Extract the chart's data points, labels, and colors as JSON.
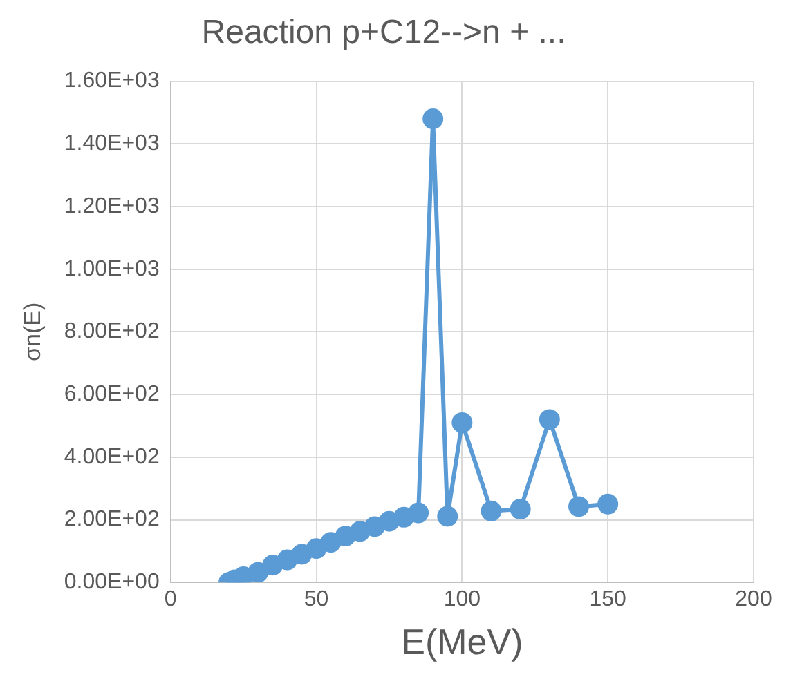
{
  "chart_data": {
    "type": "line",
    "title": "Reaction p+C12-->n + ...",
    "xlabel": "E(MeV)",
    "ylabel": "σn(E)",
    "series": [
      {
        "color": "#5b9bd5",
        "x": [
          20,
          22,
          25,
          30,
          35,
          40,
          45,
          50,
          55,
          60,
          65,
          70,
          75,
          80,
          85,
          90,
          95,
          100,
          110,
          120,
          130,
          140,
          150
        ],
        "values": [
          0,
          8,
          18,
          32,
          55,
          72,
          90,
          108,
          128,
          148,
          163,
          178,
          195,
          208,
          222,
          1480,
          211,
          510,
          228,
          234,
          520,
          242,
          250
        ]
      }
    ],
    "xlim": [
      0,
      200
    ],
    "xticks": [
      0,
      50,
      100,
      150,
      200
    ],
    "ylim": [
      0,
      1600
    ],
    "yticks": [
      {
        "value": 0,
        "label": "0.00E+00"
      },
      {
        "value": 200,
        "label": "2.00E+02"
      },
      {
        "value": 400,
        "label": "4.00E+02"
      },
      {
        "value": 600,
        "label": "6.00E+02"
      },
      {
        "value": 800,
        "label": "8.00E+02"
      },
      {
        "value": 1000,
        "label": "1.00E+03"
      },
      {
        "value": 1200,
        "label": "1.20E+03"
      },
      {
        "value": 1400,
        "label": "1.40E+03"
      },
      {
        "value": 1600,
        "label": "1.60E+03"
      }
    ],
    "grid": true,
    "legend": false,
    "marker": "circle",
    "line_style": "solid"
  }
}
